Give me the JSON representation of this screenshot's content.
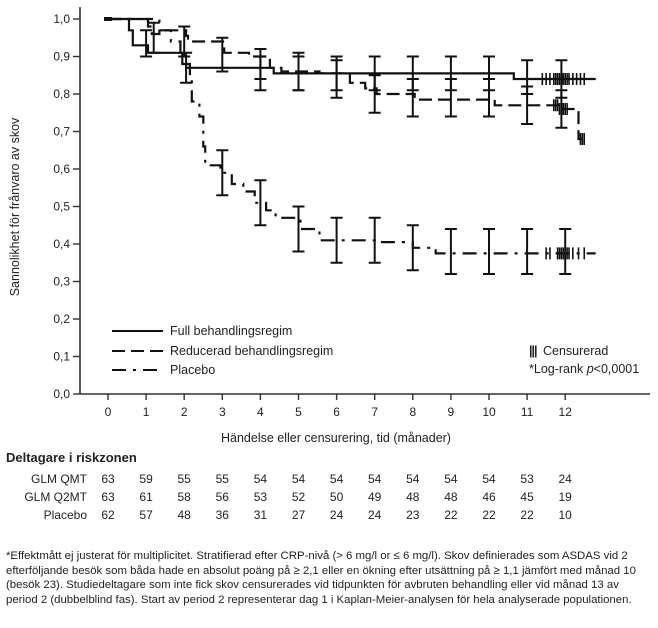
{
  "chart_data": {
    "type": "line",
    "subtype": "kaplan-meier",
    "title": "",
    "xlabel": "Händelse eller censurering, tid (månader)",
    "ylabel": "Sannolikhet för frånvaro av skov",
    "xlim": [
      0,
      12.8
    ],
    "ylim": [
      0,
      1.0
    ],
    "x_ticks": [
      0,
      1,
      2,
      3,
      4,
      5,
      6,
      7,
      8,
      9,
      10,
      11,
      12
    ],
    "x_tick_labels": [
      "0",
      "1",
      "2",
      "3",
      "4",
      "5",
      "6",
      "7",
      "8",
      "9",
      "10",
      "11",
      "12"
    ],
    "y_ticks": [
      0.0,
      0.1,
      0.2,
      0.3,
      0.4,
      0.5,
      0.6,
      0.7,
      0.8,
      0.9,
      1.0
    ],
    "y_tick_labels": [
      "0,0",
      "0,1",
      "0,2",
      "0,3",
      "0,4",
      "0,5",
      "0,6",
      "0,7",
      "0,8",
      "0,9",
      "1,0"
    ],
    "grid": false,
    "legend_position": "bottom-left",
    "series": [
      {
        "name": "Full behandlingsregim",
        "style": "solid",
        "steps": [
          [
            0,
            1.0
          ],
          [
            0.55,
            0.97
          ],
          [
            0.65,
            0.93
          ],
          [
            1.0,
            0.93
          ],
          [
            1.05,
            0.91
          ],
          [
            1.9,
            0.91
          ],
          [
            1.95,
            0.88
          ],
          [
            2.05,
            0.87
          ],
          [
            4.3,
            0.87
          ],
          [
            4.35,
            0.855
          ],
          [
            10.6,
            0.855
          ],
          [
            10.65,
            0.84
          ],
          [
            12.8,
            0.84
          ]
        ],
        "error_bars": [
          {
            "x": 1.0,
            "lo": 0.9,
            "hi": 0.97
          },
          {
            "x": 2.05,
            "lo": 0.83,
            "hi": 0.91
          },
          {
            "x": 4.0,
            "lo": 0.81,
            "hi": 0.9
          },
          {
            "x": 5.0,
            "lo": 0.81,
            "hi": 0.9
          },
          {
            "x": 6.0,
            "lo": 0.81,
            "hi": 0.9
          },
          {
            "x": 7.0,
            "lo": 0.81,
            "hi": 0.9
          },
          {
            "x": 8.0,
            "lo": 0.81,
            "hi": 0.9
          },
          {
            "x": 9.0,
            "lo": 0.81,
            "hi": 0.9
          },
          {
            "x": 10.0,
            "lo": 0.81,
            "hi": 0.9
          },
          {
            "x": 11.0,
            "lo": 0.8,
            "hi": 0.89
          },
          {
            "x": 11.9,
            "lo": 0.79,
            "hi": 0.89
          }
        ],
        "censored": [
          11.4,
          11.5,
          11.6,
          11.7,
          11.75,
          11.8,
          11.85,
          11.9,
          11.95,
          12.0,
          12.05,
          12.1,
          12.2,
          12.3,
          12.4,
          12.5
        ]
      },
      {
        "name": "Reducerad behandlingsregim",
        "style": "dashed",
        "steps": [
          [
            0,
            1.0
          ],
          [
            1.0,
            1.0
          ],
          [
            1.05,
            0.98
          ],
          [
            1.15,
            0.96
          ],
          [
            1.3,
            0.96
          ],
          [
            1.35,
            0.97
          ],
          [
            2.0,
            0.97
          ],
          [
            2.05,
            0.955
          ],
          [
            2.1,
            0.94
          ],
          [
            3.0,
            0.94
          ],
          [
            3.05,
            0.91
          ],
          [
            3.6,
            0.91
          ],
          [
            3.7,
            0.9
          ],
          [
            4.2,
            0.9
          ],
          [
            4.25,
            0.87
          ],
          [
            4.5,
            0.87
          ],
          [
            4.55,
            0.86
          ],
          [
            5.5,
            0.86
          ],
          [
            5.55,
            0.855
          ],
          [
            6.3,
            0.855
          ],
          [
            6.35,
            0.83
          ],
          [
            6.7,
            0.83
          ],
          [
            6.75,
            0.815
          ],
          [
            7.0,
            0.815
          ],
          [
            7.05,
            0.8
          ],
          [
            8.0,
            0.8
          ],
          [
            8.05,
            0.785
          ],
          [
            10.1,
            0.785
          ],
          [
            10.15,
            0.77
          ],
          [
            11.8,
            0.77
          ],
          [
            11.85,
            0.76
          ],
          [
            12.3,
            0.76
          ],
          [
            12.35,
            0.68
          ],
          [
            12.6,
            0.68
          ]
        ],
        "error_bars": [
          {
            "x": 1.2,
            "lo": 0.91,
            "hi": 0.99
          },
          {
            "x": 2.0,
            "lo": 0.9,
            "hi": 0.98
          },
          {
            "x": 3.0,
            "lo": 0.86,
            "hi": 0.95
          },
          {
            "x": 4.0,
            "lo": 0.84,
            "hi": 0.92
          },
          {
            "x": 5.0,
            "lo": 0.81,
            "hi": 0.91
          },
          {
            "x": 6.0,
            "lo": 0.79,
            "hi": 0.89
          },
          {
            "x": 7.0,
            "lo": 0.75,
            "hi": 0.85
          },
          {
            "x": 8.0,
            "lo": 0.74,
            "hi": 0.84
          },
          {
            "x": 9.0,
            "lo": 0.74,
            "hi": 0.84
          },
          {
            "x": 10.0,
            "lo": 0.74,
            "hi": 0.84
          },
          {
            "x": 11.0,
            "lo": 0.72,
            "hi": 0.82
          },
          {
            "x": 11.9,
            "lo": 0.71,
            "hi": 0.81
          }
        ],
        "censored": [
          11.7,
          11.75,
          11.8,
          11.85,
          11.9,
          11.95,
          12.0,
          12.05,
          12.4,
          12.45,
          12.5
        ]
      },
      {
        "name": "Placebo",
        "style": "dash-dot",
        "steps": [
          [
            0,
            1.0
          ],
          [
            1.3,
            1.0
          ],
          [
            1.35,
            0.97
          ],
          [
            1.6,
            0.97
          ],
          [
            1.65,
            0.94
          ],
          [
            1.85,
            0.94
          ],
          [
            1.9,
            0.9
          ],
          [
            2.05,
            0.88
          ],
          [
            2.15,
            0.84
          ],
          [
            2.2,
            0.78
          ],
          [
            2.4,
            0.74
          ],
          [
            2.5,
            0.66
          ],
          [
            2.55,
            0.61
          ],
          [
            2.9,
            0.61
          ],
          [
            2.95,
            0.59
          ],
          [
            3.2,
            0.59
          ],
          [
            3.25,
            0.56
          ],
          [
            3.5,
            0.56
          ],
          [
            3.55,
            0.54
          ],
          [
            3.8,
            0.54
          ],
          [
            3.85,
            0.51
          ],
          [
            4.0,
            0.51
          ],
          [
            4.15,
            0.49
          ],
          [
            4.4,
            0.47
          ],
          [
            5.0,
            0.47
          ],
          [
            5.05,
            0.44
          ],
          [
            5.5,
            0.44
          ],
          [
            5.55,
            0.41
          ],
          [
            6.0,
            0.41
          ],
          [
            7.0,
            0.405
          ],
          [
            8.0,
            0.39
          ],
          [
            8.5,
            0.39
          ],
          [
            8.6,
            0.375
          ],
          [
            12.8,
            0.375
          ]
        ],
        "error_bars": [
          {
            "x": 3.0,
            "lo": 0.53,
            "hi": 0.65
          },
          {
            "x": 4.0,
            "lo": 0.45,
            "hi": 0.57
          },
          {
            "x": 5.0,
            "lo": 0.38,
            "hi": 0.5
          },
          {
            "x": 6.0,
            "lo": 0.35,
            "hi": 0.47
          },
          {
            "x": 7.0,
            "lo": 0.35,
            "hi": 0.47
          },
          {
            "x": 8.0,
            "lo": 0.33,
            "hi": 0.45
          },
          {
            "x": 9.0,
            "lo": 0.32,
            "hi": 0.44
          },
          {
            "x": 10.0,
            "lo": 0.32,
            "hi": 0.44
          },
          {
            "x": 11.0,
            "lo": 0.32,
            "hi": 0.44
          },
          {
            "x": 12.0,
            "lo": 0.32,
            "hi": 0.44
          }
        ],
        "censored": [
          11.5,
          11.6,
          11.8,
          11.85,
          11.9,
          11.95,
          12.0,
          12.05,
          12.1,
          12.2,
          12.35,
          12.5
        ]
      }
    ],
    "legend": {
      "entries": [
        "Full behandlingsregim",
        "Reducerad behandlingsregim",
        "Placebo"
      ],
      "censored_label": "Censurerad",
      "censored_symbol": "|||",
      "pvalue_prefix": "*Log-rank ",
      "pvalue_p": "p",
      "pvalue_value": "<0,0001"
    },
    "color": "#111111"
  },
  "risk_table": {
    "title": "Deltagare i riskzonen",
    "time_points": [
      0,
      1,
      2,
      3,
      4,
      5,
      6,
      7,
      8,
      9,
      10,
      11,
      12
    ],
    "rows": [
      {
        "label": "GLM QMT",
        "values": [
          "63",
          "59",
          "55",
          "55",
          "54",
          "54",
          "54",
          "54",
          "54",
          "54",
          "54",
          "53",
          "24"
        ]
      },
      {
        "label": "GLM Q2MT",
        "values": [
          "63",
          "61",
          "58",
          "56",
          "53",
          "52",
          "50",
          "49",
          "48",
          "48",
          "46",
          "45",
          "19"
        ]
      },
      {
        "label": "Placebo",
        "values": [
          "62",
          "57",
          "48",
          "36",
          "31",
          "27",
          "24",
          "24",
          "23",
          "22",
          "22",
          "22",
          "10"
        ]
      }
    ]
  },
  "footnote": "*Effektmått ej justerat för multiplicitet. Stratifierad efter CRP-nivå (> 6 mg/l or ≤ 6 mg/l). Skov definierades som ASDAS vid 2 efterföljande besök som båda hade en absolut poäng på ≥ 2,1 eller en ökning efter utsättning på ≥ 1,1 jämfört med månad 10 (besök 23). Studiedeltagare som inte fick skov censurerades vid tidpunkten för avbruten behandling eller vid månad 13 av period 2 (dubbelblind fas). Start av period 2 representerar dag 1 i Kaplan-Meier-analysen för hela analyserade populationen."
}
